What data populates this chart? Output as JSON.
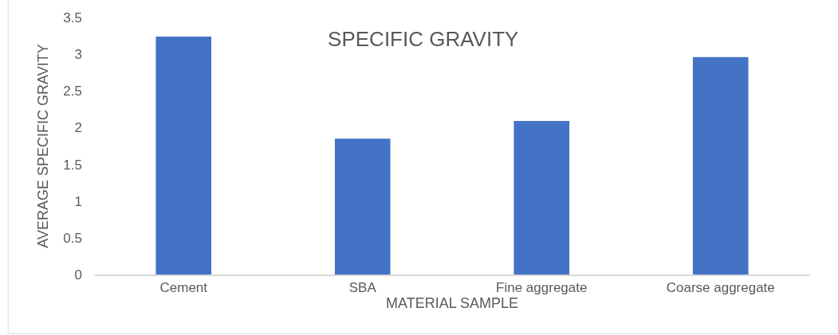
{
  "chart_data": {
    "type": "bar",
    "title": "SPECIFIC GRAVITY",
    "xlabel": "MATERIAL SAMPLE",
    "ylabel": "AVERAGE SPECIFIC GRAVITY",
    "categories": [
      "Cement",
      "SBA",
      "Fine aggregate",
      "Coarse aggregate"
    ],
    "values": [
      3.24,
      1.85,
      2.09,
      2.96
    ],
    "color": "#4472c4",
    "ylim": [
      0,
      3.5
    ],
    "yticks": [
      0,
      0.5,
      1,
      1.5,
      2,
      2.5,
      3,
      3.5
    ],
    "grid": false,
    "legend": false
  }
}
